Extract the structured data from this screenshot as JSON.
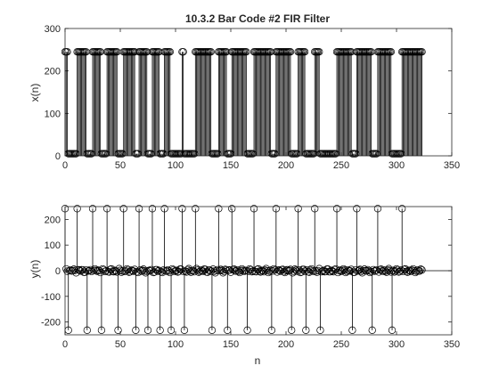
{
  "chart_data": [
    {
      "type": "stem",
      "title": "10.3.2 Bar Code #2 FIR Filter",
      "xlabel": "",
      "ylabel": "x(n)",
      "xlim": [
        0,
        350
      ],
      "ylim": [
        0,
        300
      ],
      "xticks": [
        0,
        50,
        100,
        150,
        200,
        250,
        300,
        350
      ],
      "yticks": [
        0,
        100,
        200,
        300
      ],
      "marker": "circle",
      "color": "#000000",
      "levels": {
        "high": 245,
        "low": 5
      },
      "n_max": 323,
      "white_runs": [
        [
          3,
          10
        ],
        [
          20,
          24
        ],
        [
          33,
          37
        ],
        [
          48,
          52
        ],
        [
          64,
          66
        ],
        [
          75,
          78
        ],
        [
          86,
          89
        ],
        [
          96,
          105
        ],
        [
          108,
          117
        ],
        [
          133,
          138
        ],
        [
          147,
          150
        ],
        [
          165,
          170
        ],
        [
          187,
          190
        ],
        [
          205,
          210
        ],
        [
          218,
          225
        ],
        [
          231,
          245
        ],
        [
          260,
          263
        ],
        [
          278,
          282
        ],
        [
          296,
          304
        ]
      ]
    },
    {
      "type": "stem",
      "title": "",
      "xlabel": "n",
      "ylabel": "y(n)",
      "xlim": [
        0,
        350
      ],
      "ylim": [
        -250,
        250
      ],
      "xticks": [
        0,
        50,
        100,
        150,
        200,
        250,
        300,
        350
      ],
      "yticks": [
        -200,
        -100,
        0,
        100,
        200
      ],
      "marker": "circle",
      "color": "#000000",
      "n_max": 323,
      "spike_values": {
        "positive": 242,
        "negative": -232
      },
      "baseline_noise": 8
    }
  ]
}
